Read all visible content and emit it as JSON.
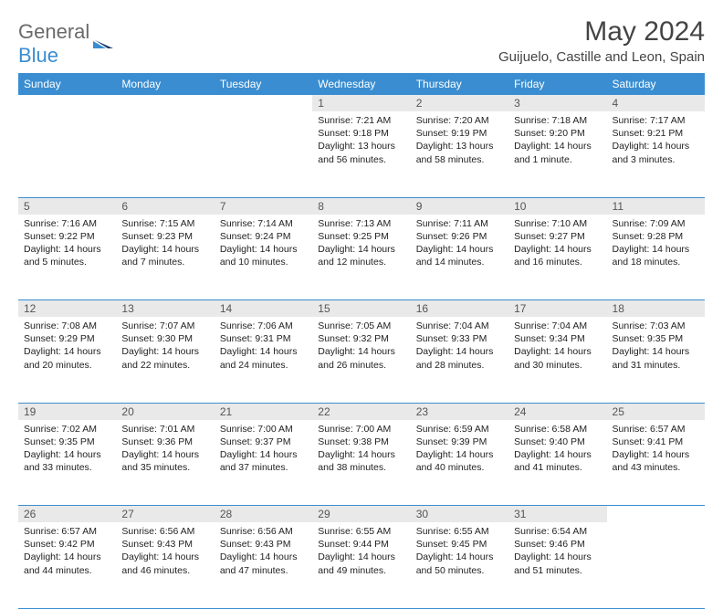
{
  "brand": {
    "word1": "General",
    "word2": "Blue"
  },
  "title": "May 2024",
  "location": "Guijuelo, Castille and Leon, Spain",
  "colors": {
    "accent": "#3a8dd0",
    "header_bg": "#3a8dd0",
    "daynum_bg": "#e9e9e9",
    "text": "#222222",
    "muted": "#6a6a6a",
    "page_bg": "#ffffff"
  },
  "weekdays": [
    "Sunday",
    "Monday",
    "Tuesday",
    "Wednesday",
    "Thursday",
    "Friday",
    "Saturday"
  ],
  "weeks": [
    [
      null,
      null,
      null,
      {
        "n": "1",
        "sunrise": "7:21 AM",
        "sunset": "9:18 PM",
        "daylight": "13 hours and 56 minutes."
      },
      {
        "n": "2",
        "sunrise": "7:20 AM",
        "sunset": "9:19 PM",
        "daylight": "13 hours and 58 minutes."
      },
      {
        "n": "3",
        "sunrise": "7:18 AM",
        "sunset": "9:20 PM",
        "daylight": "14 hours and 1 minute."
      },
      {
        "n": "4",
        "sunrise": "7:17 AM",
        "sunset": "9:21 PM",
        "daylight": "14 hours and 3 minutes."
      }
    ],
    [
      {
        "n": "5",
        "sunrise": "7:16 AM",
        "sunset": "9:22 PM",
        "daylight": "14 hours and 5 minutes."
      },
      {
        "n": "6",
        "sunrise": "7:15 AM",
        "sunset": "9:23 PM",
        "daylight": "14 hours and 7 minutes."
      },
      {
        "n": "7",
        "sunrise": "7:14 AM",
        "sunset": "9:24 PM",
        "daylight": "14 hours and 10 minutes."
      },
      {
        "n": "8",
        "sunrise": "7:13 AM",
        "sunset": "9:25 PM",
        "daylight": "14 hours and 12 minutes."
      },
      {
        "n": "9",
        "sunrise": "7:11 AM",
        "sunset": "9:26 PM",
        "daylight": "14 hours and 14 minutes."
      },
      {
        "n": "10",
        "sunrise": "7:10 AM",
        "sunset": "9:27 PM",
        "daylight": "14 hours and 16 minutes."
      },
      {
        "n": "11",
        "sunrise": "7:09 AM",
        "sunset": "9:28 PM",
        "daylight": "14 hours and 18 minutes."
      }
    ],
    [
      {
        "n": "12",
        "sunrise": "7:08 AM",
        "sunset": "9:29 PM",
        "daylight": "14 hours and 20 minutes."
      },
      {
        "n": "13",
        "sunrise": "7:07 AM",
        "sunset": "9:30 PM",
        "daylight": "14 hours and 22 minutes."
      },
      {
        "n": "14",
        "sunrise": "7:06 AM",
        "sunset": "9:31 PM",
        "daylight": "14 hours and 24 minutes."
      },
      {
        "n": "15",
        "sunrise": "7:05 AM",
        "sunset": "9:32 PM",
        "daylight": "14 hours and 26 minutes."
      },
      {
        "n": "16",
        "sunrise": "7:04 AM",
        "sunset": "9:33 PM",
        "daylight": "14 hours and 28 minutes."
      },
      {
        "n": "17",
        "sunrise": "7:04 AM",
        "sunset": "9:34 PM",
        "daylight": "14 hours and 30 minutes."
      },
      {
        "n": "18",
        "sunrise": "7:03 AM",
        "sunset": "9:35 PM",
        "daylight": "14 hours and 31 minutes."
      }
    ],
    [
      {
        "n": "19",
        "sunrise": "7:02 AM",
        "sunset": "9:35 PM",
        "daylight": "14 hours and 33 minutes."
      },
      {
        "n": "20",
        "sunrise": "7:01 AM",
        "sunset": "9:36 PM",
        "daylight": "14 hours and 35 minutes."
      },
      {
        "n": "21",
        "sunrise": "7:00 AM",
        "sunset": "9:37 PM",
        "daylight": "14 hours and 37 minutes."
      },
      {
        "n": "22",
        "sunrise": "7:00 AM",
        "sunset": "9:38 PM",
        "daylight": "14 hours and 38 minutes."
      },
      {
        "n": "23",
        "sunrise": "6:59 AM",
        "sunset": "9:39 PM",
        "daylight": "14 hours and 40 minutes."
      },
      {
        "n": "24",
        "sunrise": "6:58 AM",
        "sunset": "9:40 PM",
        "daylight": "14 hours and 41 minutes."
      },
      {
        "n": "25",
        "sunrise": "6:57 AM",
        "sunset": "9:41 PM",
        "daylight": "14 hours and 43 minutes."
      }
    ],
    [
      {
        "n": "26",
        "sunrise": "6:57 AM",
        "sunset": "9:42 PM",
        "daylight": "14 hours and 44 minutes."
      },
      {
        "n": "27",
        "sunrise": "6:56 AM",
        "sunset": "9:43 PM",
        "daylight": "14 hours and 46 minutes."
      },
      {
        "n": "28",
        "sunrise": "6:56 AM",
        "sunset": "9:43 PM",
        "daylight": "14 hours and 47 minutes."
      },
      {
        "n": "29",
        "sunrise": "6:55 AM",
        "sunset": "9:44 PM",
        "daylight": "14 hours and 49 minutes."
      },
      {
        "n": "30",
        "sunrise": "6:55 AM",
        "sunset": "9:45 PM",
        "daylight": "14 hours and 50 minutes."
      },
      {
        "n": "31",
        "sunrise": "6:54 AM",
        "sunset": "9:46 PM",
        "daylight": "14 hours and 51 minutes."
      },
      null
    ]
  ],
  "labels": {
    "sunrise": "Sunrise:",
    "sunset": "Sunset:",
    "daylight": "Daylight:"
  }
}
